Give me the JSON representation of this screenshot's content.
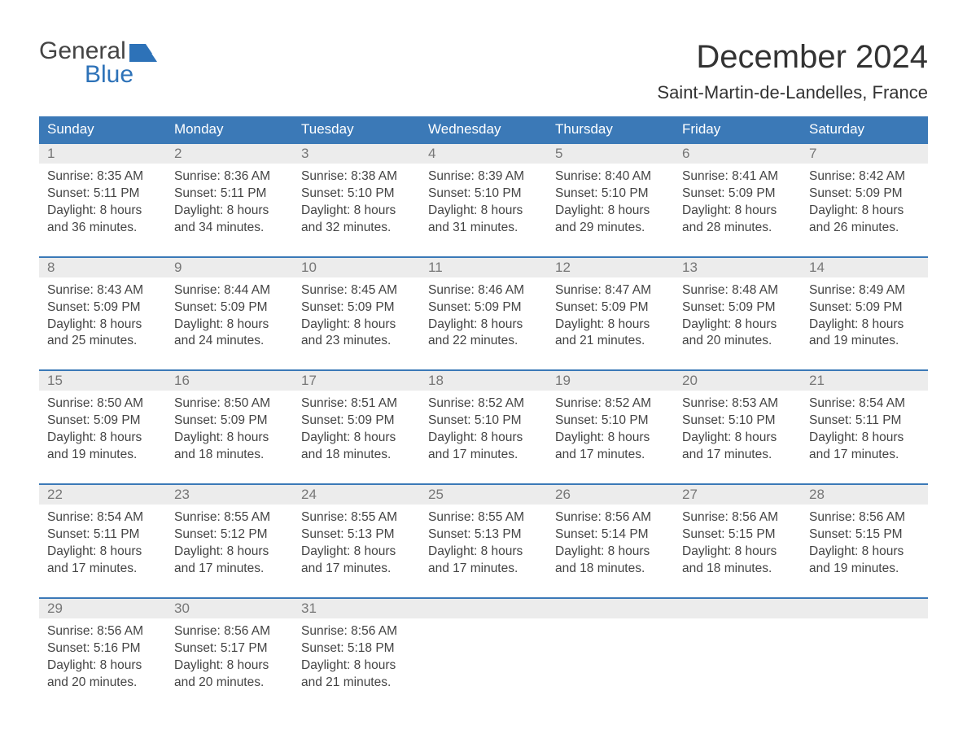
{
  "brand": {
    "line1": "General",
    "line2": "Blue",
    "flag_color": "#2d72b8",
    "text_top_color": "#444444",
    "text_bottom_color": "#2d72b8"
  },
  "title": "December 2024",
  "location": "Saint-Martin-de-Landelles, France",
  "colors": {
    "header_bg": "#3b79b7",
    "header_text": "#ffffff",
    "week_border": "#3b79b7",
    "daynum_bg": "#ececec",
    "daynum_text": "#777777",
    "body_text": "#444444",
    "page_bg": "#ffffff"
  },
  "font": {
    "family": "Arial",
    "title_size_pt": 30,
    "location_size_pt": 17,
    "dayname_size_pt": 13,
    "cell_size_pt": 12
  },
  "daynames": [
    "Sunday",
    "Monday",
    "Tuesday",
    "Wednesday",
    "Thursday",
    "Friday",
    "Saturday"
  ],
  "weeks": [
    [
      {
        "n": "1",
        "sunrise": "8:35 AM",
        "sunset": "5:11 PM",
        "daylight": "8 hours and 36 minutes."
      },
      {
        "n": "2",
        "sunrise": "8:36 AM",
        "sunset": "5:11 PM",
        "daylight": "8 hours and 34 minutes."
      },
      {
        "n": "3",
        "sunrise": "8:38 AM",
        "sunset": "5:10 PM",
        "daylight": "8 hours and 32 minutes."
      },
      {
        "n": "4",
        "sunrise": "8:39 AM",
        "sunset": "5:10 PM",
        "daylight": "8 hours and 31 minutes."
      },
      {
        "n": "5",
        "sunrise": "8:40 AM",
        "sunset": "5:10 PM",
        "daylight": "8 hours and 29 minutes."
      },
      {
        "n": "6",
        "sunrise": "8:41 AM",
        "sunset": "5:09 PM",
        "daylight": "8 hours and 28 minutes."
      },
      {
        "n": "7",
        "sunrise": "8:42 AM",
        "sunset": "5:09 PM",
        "daylight": "8 hours and 26 minutes."
      }
    ],
    [
      {
        "n": "8",
        "sunrise": "8:43 AM",
        "sunset": "5:09 PM",
        "daylight": "8 hours and 25 minutes."
      },
      {
        "n": "9",
        "sunrise": "8:44 AM",
        "sunset": "5:09 PM",
        "daylight": "8 hours and 24 minutes."
      },
      {
        "n": "10",
        "sunrise": "8:45 AM",
        "sunset": "5:09 PM",
        "daylight": "8 hours and 23 minutes."
      },
      {
        "n": "11",
        "sunrise": "8:46 AM",
        "sunset": "5:09 PM",
        "daylight": "8 hours and 22 minutes."
      },
      {
        "n": "12",
        "sunrise": "8:47 AM",
        "sunset": "5:09 PM",
        "daylight": "8 hours and 21 minutes."
      },
      {
        "n": "13",
        "sunrise": "8:48 AM",
        "sunset": "5:09 PM",
        "daylight": "8 hours and 20 minutes."
      },
      {
        "n": "14",
        "sunrise": "8:49 AM",
        "sunset": "5:09 PM",
        "daylight": "8 hours and 19 minutes."
      }
    ],
    [
      {
        "n": "15",
        "sunrise": "8:50 AM",
        "sunset": "5:09 PM",
        "daylight": "8 hours and 19 minutes."
      },
      {
        "n": "16",
        "sunrise": "8:50 AM",
        "sunset": "5:09 PM",
        "daylight": "8 hours and 18 minutes."
      },
      {
        "n": "17",
        "sunrise": "8:51 AM",
        "sunset": "5:09 PM",
        "daylight": "8 hours and 18 minutes."
      },
      {
        "n": "18",
        "sunrise": "8:52 AM",
        "sunset": "5:10 PM",
        "daylight": "8 hours and 17 minutes."
      },
      {
        "n": "19",
        "sunrise": "8:52 AM",
        "sunset": "5:10 PM",
        "daylight": "8 hours and 17 minutes."
      },
      {
        "n": "20",
        "sunrise": "8:53 AM",
        "sunset": "5:10 PM",
        "daylight": "8 hours and 17 minutes."
      },
      {
        "n": "21",
        "sunrise": "8:54 AM",
        "sunset": "5:11 PM",
        "daylight": "8 hours and 17 minutes."
      }
    ],
    [
      {
        "n": "22",
        "sunrise": "8:54 AM",
        "sunset": "5:11 PM",
        "daylight": "8 hours and 17 minutes."
      },
      {
        "n": "23",
        "sunrise": "8:55 AM",
        "sunset": "5:12 PM",
        "daylight": "8 hours and 17 minutes."
      },
      {
        "n": "24",
        "sunrise": "8:55 AM",
        "sunset": "5:13 PM",
        "daylight": "8 hours and 17 minutes."
      },
      {
        "n": "25",
        "sunrise": "8:55 AM",
        "sunset": "5:13 PM",
        "daylight": "8 hours and 17 minutes."
      },
      {
        "n": "26",
        "sunrise": "8:56 AM",
        "sunset": "5:14 PM",
        "daylight": "8 hours and 18 minutes."
      },
      {
        "n": "27",
        "sunrise": "8:56 AM",
        "sunset": "5:15 PM",
        "daylight": "8 hours and 18 minutes."
      },
      {
        "n": "28",
        "sunrise": "8:56 AM",
        "sunset": "5:15 PM",
        "daylight": "8 hours and 19 minutes."
      }
    ],
    [
      {
        "n": "29",
        "sunrise": "8:56 AM",
        "sunset": "5:16 PM",
        "daylight": "8 hours and 20 minutes."
      },
      {
        "n": "30",
        "sunrise": "8:56 AM",
        "sunset": "5:17 PM",
        "daylight": "8 hours and 20 minutes."
      },
      {
        "n": "31",
        "sunrise": "8:56 AM",
        "sunset": "5:18 PM",
        "daylight": "8 hours and 21 minutes."
      },
      null,
      null,
      null,
      null
    ]
  ],
  "labels": {
    "sunrise": "Sunrise: ",
    "sunset": "Sunset: ",
    "daylight": "Daylight: "
  }
}
